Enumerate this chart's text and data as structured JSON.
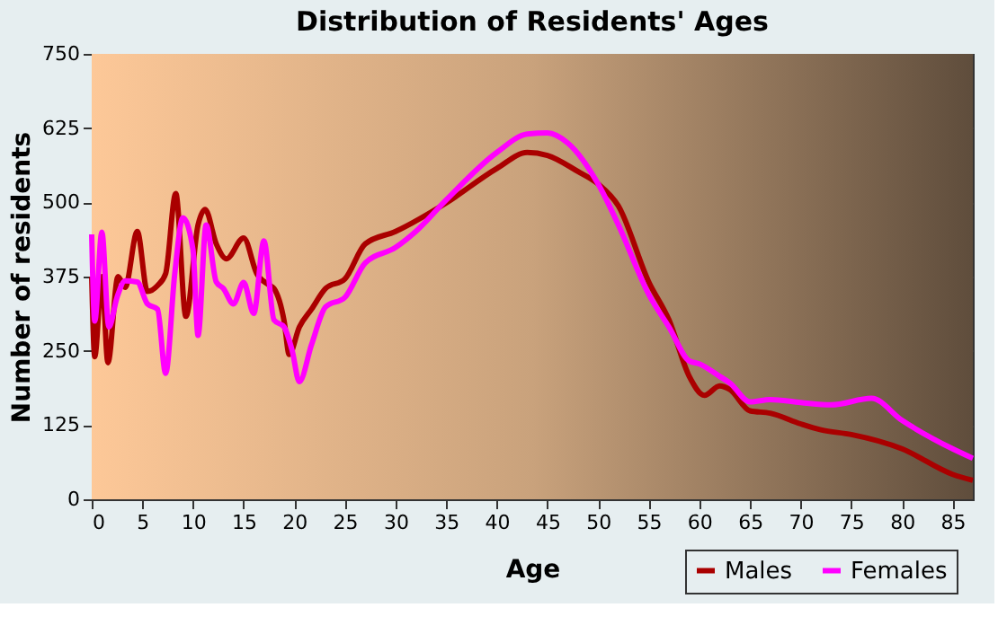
{
  "chart_data": {
    "type": "line",
    "title": "Distribution of Residents' Ages",
    "xlabel": "Age",
    "ylabel": "Number of residents",
    "xlim": [
      0,
      87
    ],
    "xticks": [
      0,
      5,
      10,
      15,
      20,
      25,
      30,
      35,
      40,
      45,
      50,
      55,
      60,
      65,
      70,
      75,
      80,
      85
    ],
    "ylim": [
      0,
      750
    ],
    "yticks": [
      0,
      125,
      250,
      375,
      500,
      625,
      750
    ],
    "grid": true,
    "legend": "bottom right",
    "marker": "none",
    "line_style": "solid",
    "series": [
      {
        "name": "Males",
        "color": "#aa0000",
        "x": [
          0,
          0.3,
          1,
          1.6,
          2.6,
          3.3,
          4.5,
          5.5,
          6.5,
          7.3,
          8.3,
          9.3,
          10.5,
          11.2,
          12.3,
          13.3,
          15,
          16.3,
          17.5,
          18,
          19,
          19.5,
          20.5,
          21.7,
          23.1,
          25,
          27,
          30,
          35,
          40,
          43,
          45,
          48,
          50,
          52,
          55,
          57,
          59,
          60.5,
          62,
          63,
          65,
          67,
          70,
          72,
          75,
          80,
          85,
          87
        ],
        "values": [
          375,
          240,
          375,
          230,
          375,
          357,
          451,
          350,
          360,
          380,
          515,
          308,
          462,
          488,
          430,
          405,
          440,
          380,
          361,
          355,
          300,
          244,
          290,
          320,
          355,
          371,
          430,
          451,
          499,
          557,
          584,
          579,
          552,
          531,
          494,
          366,
          302,
          207,
          175,
          191,
          185,
          149,
          145,
          127,
          117,
          109,
          85,
          42,
          32
        ]
      },
      {
        "name": "Females",
        "color": "#ff00ff",
        "x": [
          0,
          0.3,
          1,
          1.7,
          2.5,
          3.3,
          4.5,
          5.5,
          6.5,
          7.3,
          8.2,
          9,
          10,
          10.5,
          11.3,
          12.3,
          13,
          14,
          15,
          16,
          17,
          18,
          19,
          19.8,
          20.5,
          21.7,
          23.1,
          25,
          27,
          30,
          32,
          35,
          40,
          43,
          45,
          47,
          50,
          52,
          55,
          57,
          59,
          60,
          62,
          63,
          65,
          67,
          70,
          73,
          77,
          80,
          85,
          87
        ],
        "values": [
          446,
          300,
          450,
          290,
          340,
          368,
          366,
          329,
          320,
          212,
          380,
          474,
          420,
          276,
          462,
          366,
          355,
          329,
          365,
          313,
          435,
          302,
          290,
          250,
          198,
          260,
          324,
          340,
          398,
          424,
          451,
          504,
          584,
          615,
          617,
          600,
          531,
          462,
          345,
          290,
          233,
          228,
          207,
          196,
          164,
          168,
          163,
          159,
          170,
          133,
          85,
          69
        ]
      }
    ]
  }
}
